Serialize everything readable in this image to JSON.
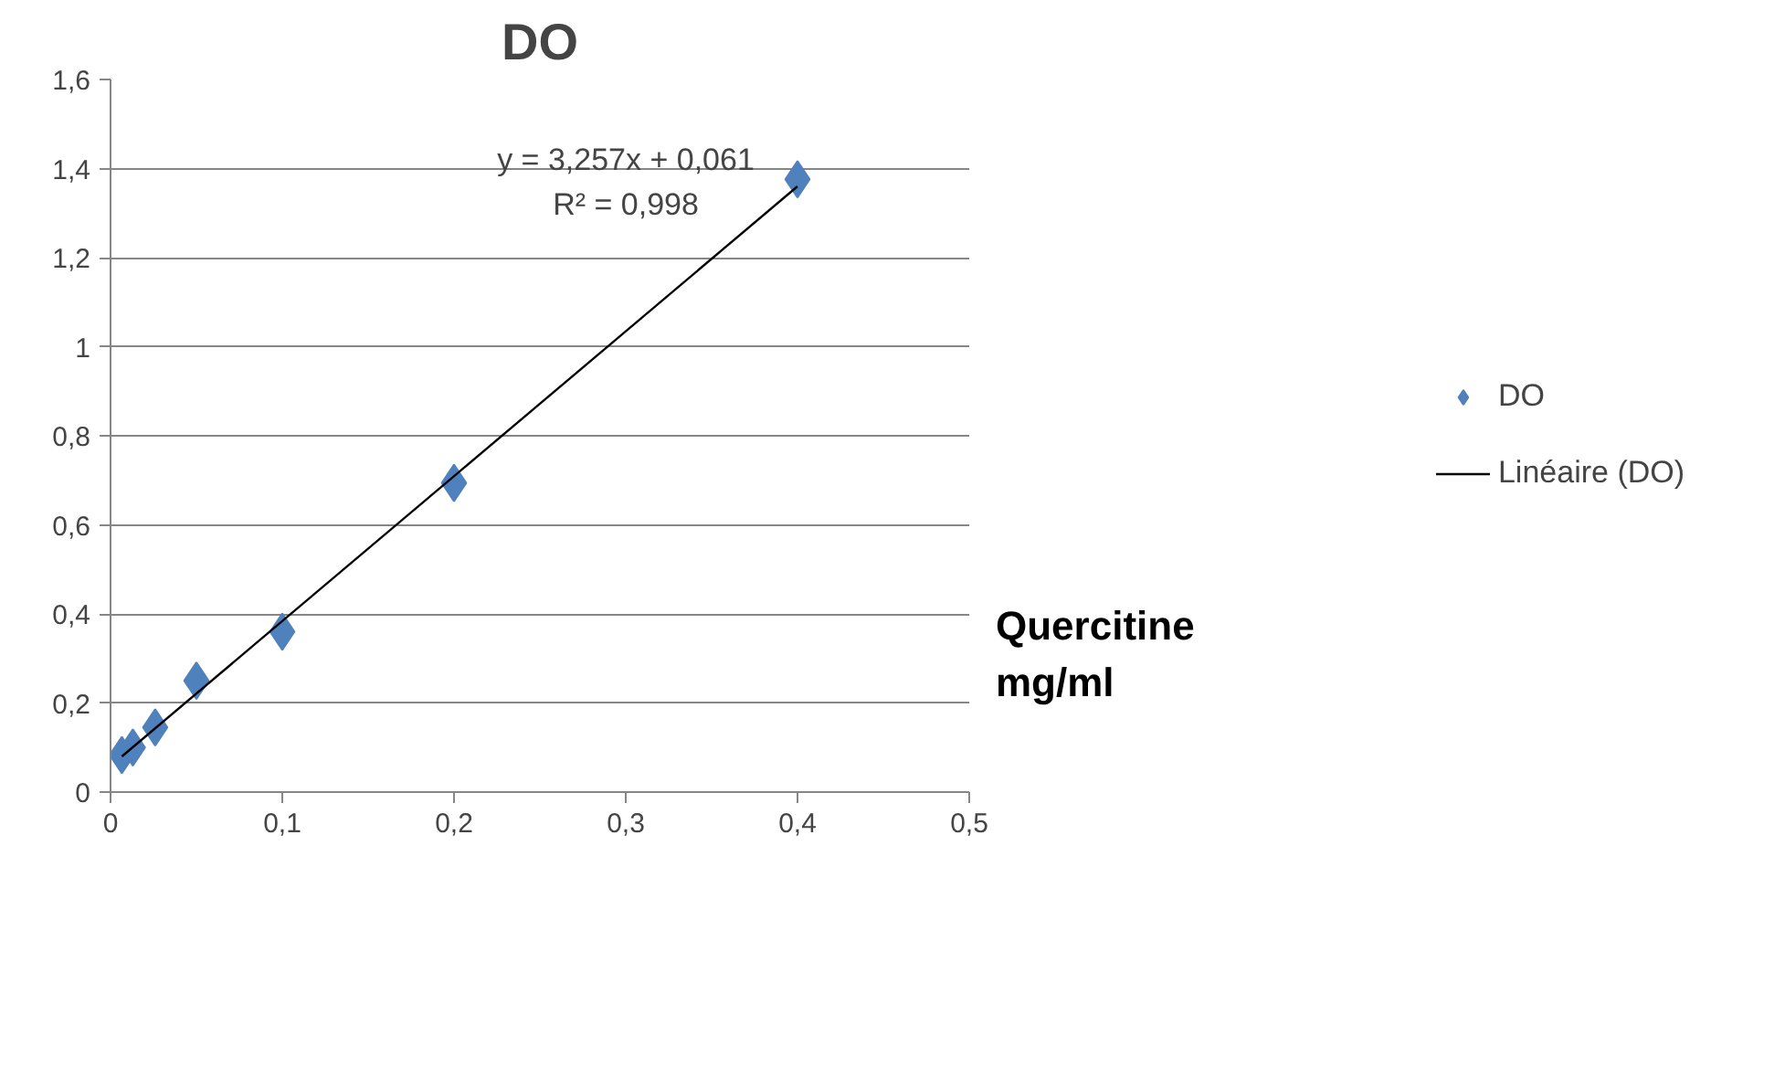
{
  "chart_data": {
    "type": "scatter",
    "title": "DO",
    "xlabel": "Quercitine\nmg/ml",
    "x": [
      0.0066,
      0.013,
      0.026,
      0.05,
      0.1,
      0.2,
      0.4
    ],
    "series": [
      {
        "name": "DO",
        "type": "scatter",
        "color": "#4f81bd",
        "marker": "diamond",
        "values": [
          0.083,
          0.1,
          0.145,
          0.25,
          0.36,
          0.694,
          1.376
        ]
      },
      {
        "name": "Linéaire (DO)",
        "type": "line",
        "color": "#000000",
        "x": [
          0.0066,
          0.4
        ],
        "values": [
          0.08,
          1.36
        ]
      }
    ],
    "annotations": [
      "y = 3,257x + 0,061",
      "R² = 0,998"
    ],
    "xlim": [
      0,
      0.5
    ],
    "ylim": [
      0,
      1.6
    ],
    "xticks": [
      0,
      {
        "value": 0.1,
        "label": "0,1"
      },
      {
        "value": 0.2,
        "label": "0,2"
      },
      {
        "value": 0.3,
        "label": "0,3"
      },
      {
        "value": 0.4,
        "label": "0,4"
      },
      {
        "value": 0.5,
        "label": "0,5"
      }
    ],
    "yticks": [
      0,
      {
        "value": 0.2,
        "label": "0,2"
      },
      {
        "value": 0.4,
        "label": "0,4"
      },
      {
        "value": 0.6,
        "label": "0,6"
      },
      {
        "value": 0.8,
        "label": "0,8"
      },
      1,
      {
        "value": 1.2,
        "label": "1,2"
      },
      {
        "value": 1.4,
        "label": "1,4"
      },
      {
        "value": 1.6,
        "label": "1,6"
      }
    ],
    "grid": "y",
    "legend": "right"
  }
}
